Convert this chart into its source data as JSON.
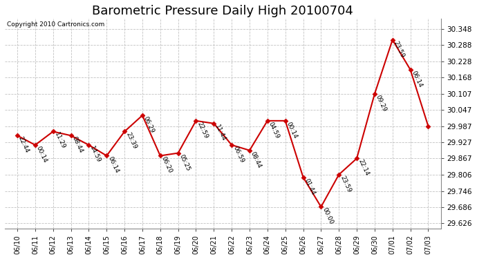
{
  "title": "Barometric Pressure Daily High 20100704",
  "copyright": "Copyright 2010 Cartronics.com",
  "x_labels": [
    "06/10",
    "06/11",
    "06/12",
    "06/13",
    "06/14",
    "06/15",
    "06/16",
    "06/17",
    "06/18",
    "06/19",
    "06/20",
    "06/21",
    "06/22",
    "06/23",
    "06/24",
    "06/25",
    "06/26",
    "06/27",
    "06/28",
    "06/29",
    "06/30",
    "07/01",
    "07/02",
    "07/03"
  ],
  "y_values": [
    29.952,
    29.917,
    29.967,
    29.952,
    29.917,
    29.877,
    29.967,
    30.027,
    29.877,
    29.887,
    30.007,
    29.997,
    29.917,
    29.897,
    30.007,
    30.007,
    29.797,
    29.687,
    29.807,
    29.867,
    30.107,
    30.308,
    30.197,
    29.987
  ],
  "point_labels": [
    "22:44",
    "00:14",
    "11:29",
    "08:44",
    "14:59",
    "06:14",
    "23:39",
    "06:29",
    "06:20",
    "05:25",
    "22:59",
    "11:44",
    "06:59",
    "08:44",
    "04:59",
    "00:14",
    "01:44",
    "00:00",
    "23:59",
    "22:14",
    "09:29",
    "23:59",
    "06:14"
  ],
  "point_labels_full": [
    "22:44",
    "00:14",
    "11:29",
    "08:44",
    "14:59",
    "06:14",
    "23:39",
    "06:29",
    "06:20",
    "05:25",
    "22:59",
    "11:44",
    "06:59",
    "08:44",
    "04:59",
    "00:14",
    "01:44",
    "00:00",
    "23:59",
    "22:14",
    "09:29",
    "23:59",
    "06:14"
  ],
  "line_color": "#CC0000",
  "marker_color": "#CC0000",
  "bg_color": "#FFFFFF",
  "grid_color": "#BBBBBB",
  "ylim_min": 29.606,
  "ylim_max": 30.388,
  "ytick_values": [
    29.626,
    29.686,
    29.746,
    29.806,
    29.867,
    29.927,
    29.987,
    30.047,
    30.107,
    30.168,
    30.228,
    30.288,
    30.348
  ],
  "title_fontsize": 13,
  "label_fontsize": 7,
  "annotation_fontsize": 6.5,
  "tick_fontsize": 7.5
}
